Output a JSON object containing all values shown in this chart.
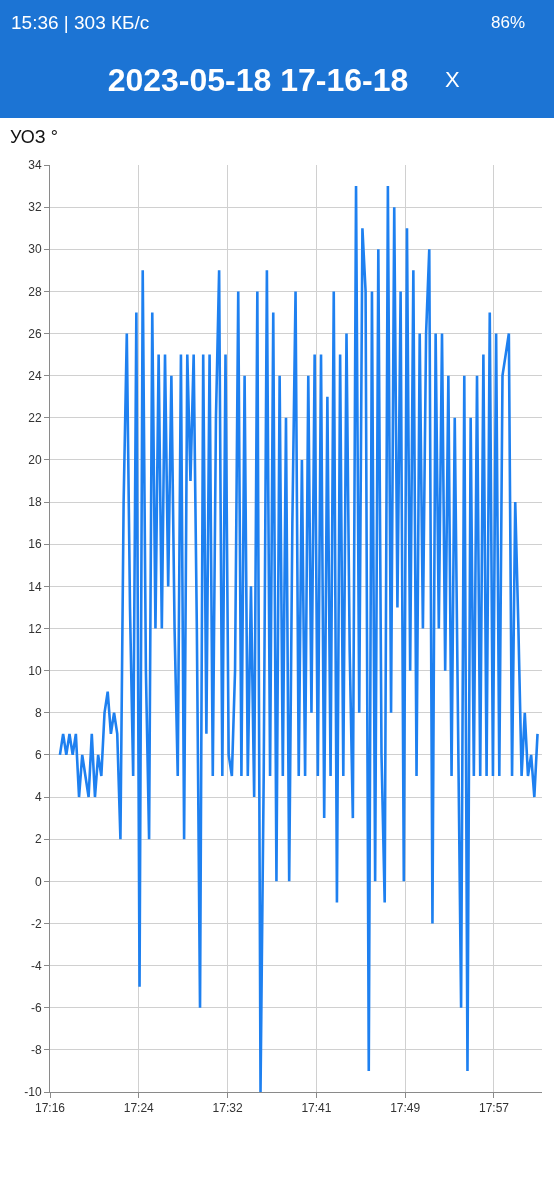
{
  "chart_data": {
    "type": "line",
    "title": "2023-05-18 17-16-18",
    "ylabel": "УОЗ °",
    "annotations": [
      "15:36 | 303 КБ/с",
      "86%",
      "X"
    ],
    "x": [
      17.282,
      17.2869,
      17.2918,
      17.2967,
      17.3016,
      17.3065,
      17.3114,
      17.3163,
      17.3212,
      17.3261,
      17.331,
      17.3359,
      17.3408,
      17.3457,
      17.3506,
      17.3555,
      17.3604,
      17.3653,
      17.3702,
      17.3751,
      17.38,
      17.3849,
      17.3898,
      17.3947,
      17.3996,
      17.4045,
      17.4094,
      17.4143,
      17.4192,
      17.4241,
      17.429,
      17.4339,
      17.4388,
      17.4437,
      17.4486,
      17.4535,
      17.4584,
      17.4633,
      17.4682,
      17.4731,
      17.478,
      17.4829,
      17.4878,
      17.4927,
      17.4976,
      17.5025,
      17.5074,
      17.5123,
      17.5172,
      17.5221,
      17.527,
      17.5319,
      17.5368,
      17.5417,
      17.5466,
      17.5515,
      17.5564,
      17.5613,
      17.5662,
      17.5711,
      17.576,
      17.5809,
      17.5858,
      17.5907,
      17.5956,
      17.6005,
      17.6054,
      17.6103,
      17.6152,
      17.6201,
      17.625,
      17.6299,
      17.6348,
      17.6397,
      17.6446,
      17.6495,
      17.6544,
      17.6593,
      17.6642,
      17.6691,
      17.674,
      17.6789,
      17.6838,
      17.6887,
      17.6936,
      17.6985,
      17.7034,
      17.7083,
      17.7132,
      17.7181,
      17.723,
      17.7279,
      17.7328,
      17.7377,
      17.7426,
      17.7475,
      17.7524,
      17.7573,
      17.7622,
      17.7671,
      17.772,
      17.7769,
      17.7818,
      17.7867,
      17.7916,
      17.7965,
      17.8014,
      17.8063,
      17.8112,
      17.8161,
      17.821,
      17.8259,
      17.8308,
      17.8357,
      17.8406,
      17.8455,
      17.8504,
      17.8553,
      17.8602,
      17.8651,
      17.87,
      17.8749,
      17.8798,
      17.8847,
      17.8896,
      17.8945,
      17.8994,
      17.9043,
      17.9092,
      17.9141,
      17.919,
      17.9239,
      17.9288,
      17.9337,
      17.9386,
      17.9435,
      17.9484,
      17.9533,
      17.9582,
      17.9631,
      17.968,
      17.9729,
      17.9778,
      17.9827,
      17.9876,
      17.9925,
      17.9974,
      18.0023,
      18.0072,
      18.0121,
      18.017
    ],
    "values": [
      6,
      7,
      6,
      7,
      6,
      7,
      4,
      6,
      5,
      4,
      7,
      4,
      6,
      5,
      8,
      9,
      7,
      8,
      7,
      2,
      18,
      26,
      13,
      5,
      27,
      -5,
      29,
      10,
      2,
      27,
      12,
      25,
      12,
      25,
      14,
      24,
      12,
      5,
      25,
      2,
      25,
      19,
      25,
      12,
      -6,
      25,
      7,
      25,
      5,
      22,
      29,
      5,
      25,
      6,
      5,
      10,
      28,
      5,
      24,
      5,
      14,
      4,
      28,
      -10,
      5,
      29,
      5,
      27,
      0,
      24,
      5,
      22,
      0,
      17,
      28,
      5,
      20,
      5,
      24,
      8,
      25,
      5,
      25,
      3,
      23,
      5,
      28,
      -1,
      25,
      5,
      26,
      11,
      3,
      33,
      8,
      31,
      28,
      -9,
      28,
      0,
      30,
      6,
      -1,
      33,
      8,
      32,
      13,
      28,
      0,
      31,
      10,
      29,
      5,
      26,
      12,
      26,
      30,
      -2,
      26,
      12,
      26,
      10,
      24,
      5,
      22,
      8,
      -6,
      24,
      -9,
      22,
      5,
      24,
      5,
      25,
      5,
      27,
      5,
      26,
      5,
      24,
      25,
      26,
      5,
      18,
      12,
      5,
      8,
      5,
      6,
      4,
      7
    ],
    "color": "#1e80f0",
    "line_style": "solid",
    "xlim": [
      17.2667,
      18.0239
    ],
    "xticks": [
      {
        "value": 17.2667,
        "label": "17:16"
      },
      {
        "value": 17.4033,
        "label": "17:24"
      },
      {
        "value": 17.54,
        "label": "17:32"
      },
      {
        "value": 17.6767,
        "label": "17:41"
      },
      {
        "value": 17.8133,
        "label": "17:49"
      },
      {
        "value": 17.95,
        "label": "17:57"
      }
    ],
    "ylim": [
      -10,
      34
    ],
    "yticks": [
      -10,
      -8,
      -6,
      -4,
      -2,
      0,
      2,
      4,
      6,
      8,
      10,
      12,
      14,
      16,
      18,
      20,
      22,
      24,
      26,
      28,
      30,
      32,
      34
    ],
    "grid": true
  }
}
